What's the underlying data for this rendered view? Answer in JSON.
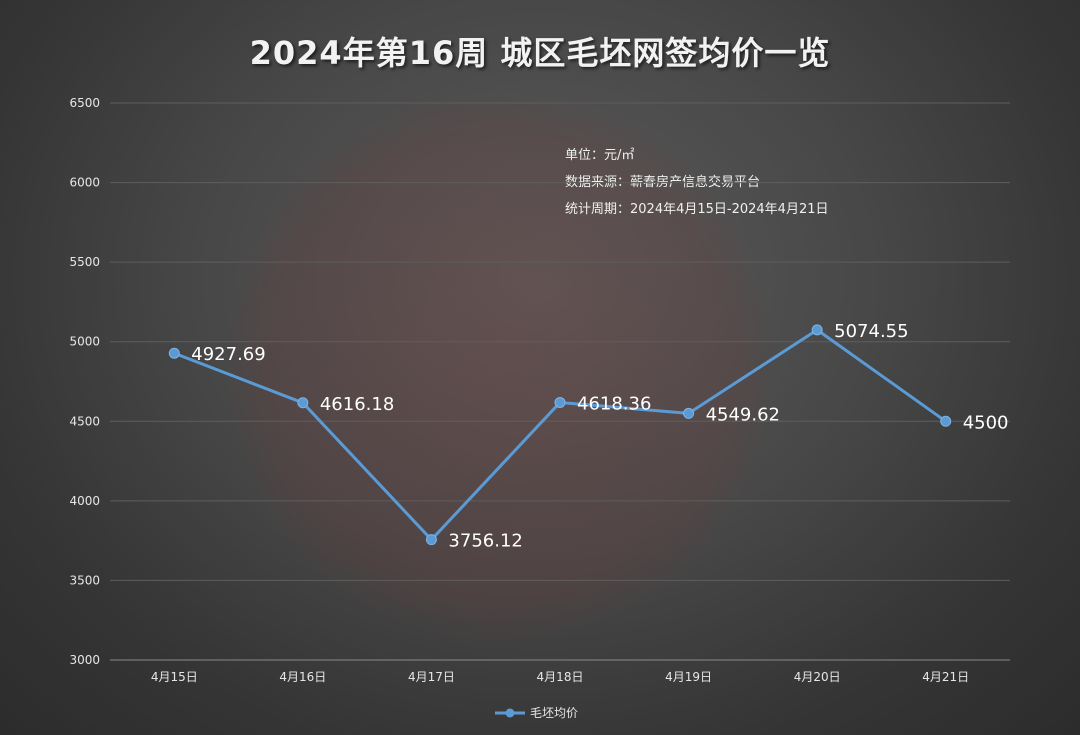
{
  "chart_data": {
    "type": "line",
    "title": "2024年第16周 城区毛坯网签均价一览",
    "notes": {
      "unit": "单位：元/㎡",
      "source": "数据来源：蕲春房产信息交易平台",
      "period": "统计周期：2024年4月15日-2024年4月21日"
    },
    "categories": [
      "4月15日",
      "4月16日",
      "4月17日",
      "4月18日",
      "4月19日",
      "4月20日",
      "4月21日"
    ],
    "series": [
      {
        "name": "毛坯均价",
        "values": [
          4927.69,
          4616.18,
          3756.12,
          4618.36,
          4549.62,
          5074.55,
          4500
        ],
        "labels": [
          "4927.69",
          "4616.18",
          "3756.12",
          "4618.36",
          "4549.62",
          "5074.55",
          "4500"
        ],
        "color": "#5b9bd5"
      }
    ],
    "ylim": [
      3000,
      6500
    ],
    "yticks": [
      3000,
      3500,
      4000,
      4500,
      5000,
      5500,
      6000,
      6500
    ],
    "grid": true,
    "legend": "bottom-center"
  }
}
